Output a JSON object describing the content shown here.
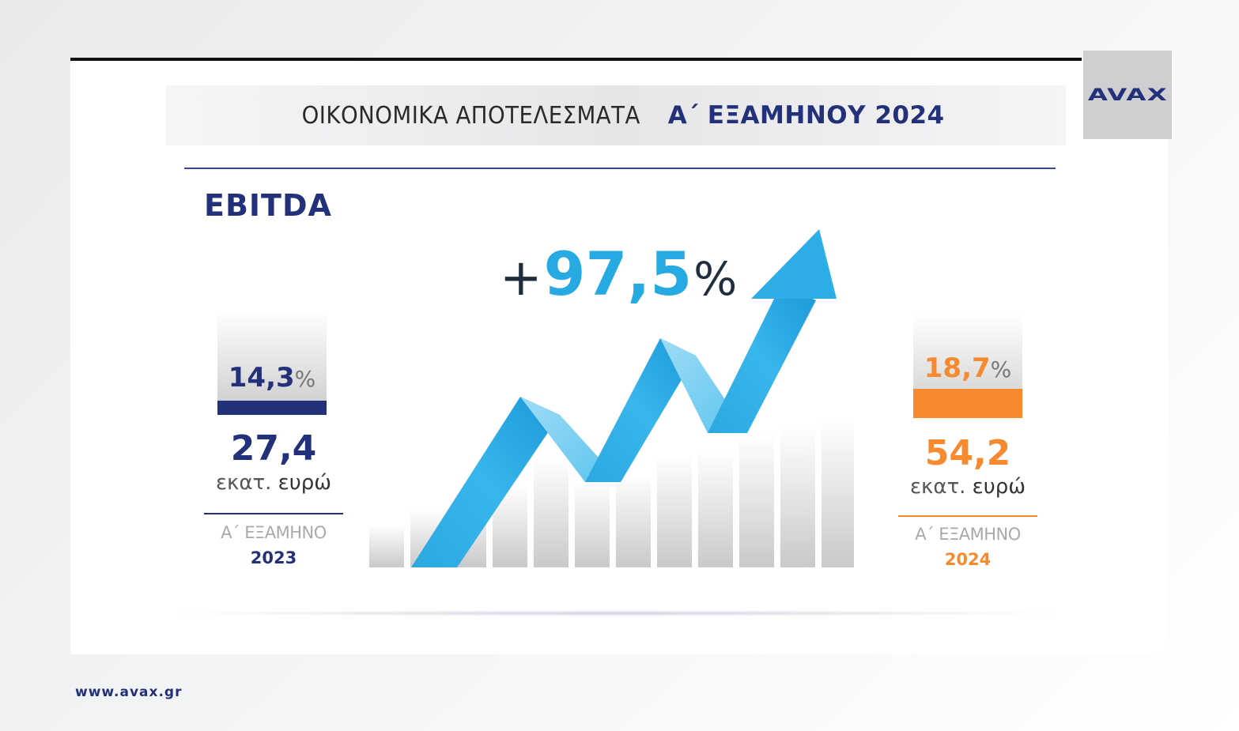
{
  "logo": {
    "text": "AVAX"
  },
  "header": {
    "title_light": "ΟΙΚΟΝΟΜΙΚΑ ΑΠΟΤΕΛΕΣΜΑΤΑ",
    "title_bold": "Α΄ ΕΞΑΜΗΝΟΥ 2024"
  },
  "metric": {
    "label": "EBITDA"
  },
  "growth": {
    "plus": "+",
    "number": "97,5",
    "percent": "%"
  },
  "left": {
    "margin_value": "14,3",
    "margin_symbol": "%",
    "amount": "27,4",
    "unit_a": "εκατ.",
    "unit_b": "ευρώ",
    "period": "Α΄ ΕΞΑΜΗΝΟ",
    "year": "2023",
    "color": "#23307a"
  },
  "right": {
    "margin_value": "18,7",
    "margin_symbol": "%",
    "amount": "54,2",
    "unit_a": "εκατ.",
    "unit_b": "ευρώ",
    "period": "Α΄ ΕΞΑΜΗΝΟ",
    "year": "2024",
    "color": "#f7892e"
  },
  "arrow": {
    "color": "#27aae1"
  },
  "footer": {
    "url": "www.avax.gr"
  }
}
